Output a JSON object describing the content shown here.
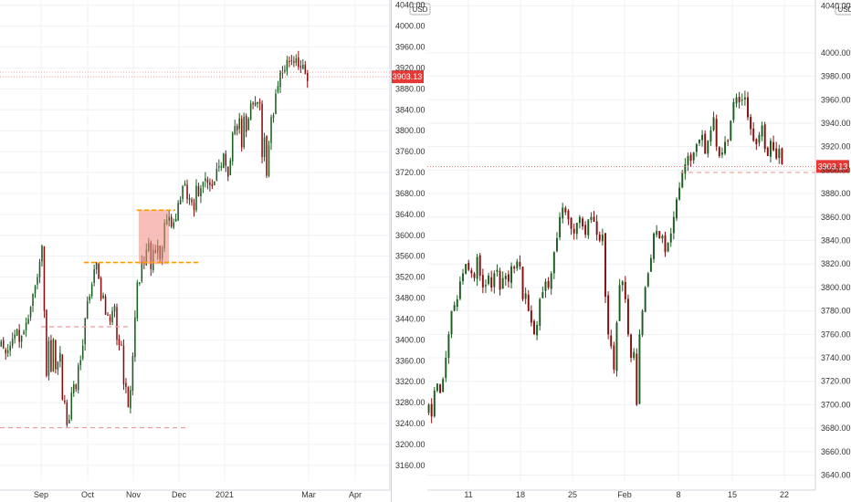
{
  "colors": {
    "up": "#1b5e20",
    "down": "#880e0e",
    "last_price": "#e53935",
    "dashed_red": "#ef9a9a",
    "dashed_orange": "#ff9800",
    "highlight": "#f28b82",
    "grid": "#eef1f5",
    "divider": "#d1d4dc",
    "axis_text": "#333333"
  },
  "chart_data": [
    {
      "type": "candlestick",
      "title": "",
      "currency": "USD",
      "last_price": "3903.13",
      "ylim": [
        3130,
        4050
      ],
      "y_ticks": [
        "3160.00",
        "3200.00",
        "3240.00",
        "3280.00",
        "3320.00",
        "3360.00",
        "3400.00",
        "3440.00",
        "3480.00",
        "3520.00",
        "3560.00",
        "3600.00",
        "3640.00",
        "3680.00",
        "3720.00",
        "3760.00",
        "3800.00",
        "3840.00",
        "3880.00",
        "3920.00",
        "3960.00",
        "4000.00",
        "4040.00"
      ],
      "x_ticks": [
        "Sep",
        "Oct",
        "Nov",
        "Dec",
        "2021",
        "Mar",
        "Apr"
      ],
      "start_date": "2020-08-21",
      "close_series": [
        3397,
        3384,
        3374,
        3380,
        3389,
        3402,
        3410,
        3420,
        3396,
        3408,
        3416,
        3433,
        3440,
        3463,
        3488,
        3503,
        3520,
        3549,
        3580,
        3455,
        3331,
        3398,
        3340,
        3401,
        3344,
        3358,
        3375,
        3286,
        3281,
        3237,
        3247,
        3299,
        3315,
        3306,
        3351,
        3361,
        3389,
        3441,
        3474,
        3483,
        3506,
        3535,
        3548,
        3517,
        3478,
        3485,
        3448,
        3446,
        3436,
        3455,
        3465,
        3400,
        3390,
        3390,
        3315,
        3310,
        3271,
        3304,
        3369,
        3443,
        3510,
        3510,
        3550,
        3545,
        3573,
        3585,
        3535,
        3572,
        3567,
        3581,
        3555,
        3577,
        3624,
        3630,
        3635,
        3617,
        3625,
        3631,
        3662,
        3668,
        3695,
        3699,
        3669,
        3671,
        3663,
        3648,
        3695,
        3675,
        3690,
        3702,
        3709,
        3701,
        3696,
        3694,
        3703,
        3727,
        3732,
        3732,
        3756,
        3733,
        3712,
        3744,
        3796,
        3809,
        3801,
        3824,
        3768,
        3827,
        3798,
        3823,
        3852,
        3851,
        3854,
        3855,
        3852,
        3750,
        3787,
        3714,
        3773,
        3826,
        3830,
        3871,
        3886,
        3915,
        3911,
        3916,
        3935,
        3932,
        3934,
        3930,
        3938,
        3922,
        3921,
        3926,
        3909,
        3895
      ]
    },
    {
      "type": "candlestick",
      "title": "",
      "currency": "USD",
      "last_price": "3903.13",
      "ylim": [
        3635,
        4045
      ],
      "y_ticks": [
        "3640.00",
        "3660.00",
        "3680.00",
        "3700.00",
        "3720.00",
        "3740.00",
        "3760.00",
        "3780.00",
        "3800.00",
        "3820.00",
        "3840.00",
        "3860.00",
        "3880.00",
        "3900.00",
        "3920.00",
        "3940.00",
        "3960.00",
        "3980.00",
        "4000.00",
        "4040.00"
      ],
      "x_ticks": [
        "11",
        "18",
        "25",
        "Feb",
        "8",
        "15",
        "22"
      ],
      "close_series": [
        3700,
        3690,
        3712,
        3718,
        3710,
        3722,
        3740,
        3760,
        3780,
        3785,
        3790,
        3805,
        3812,
        3820,
        3815,
        3812,
        3808,
        3826,
        3810,
        3800,
        3802,
        3810,
        3800,
        3812,
        3815,
        3798,
        3808,
        3810,
        3805,
        3818,
        3816,
        3822,
        3818,
        3790,
        3795,
        3780,
        3770,
        3760,
        3768,
        3790,
        3796,
        3805,
        3800,
        3812,
        3830,
        3842,
        3860,
        3868,
        3864,
        3858,
        3850,
        3846,
        3855,
        3860,
        3852,
        3845,
        3858,
        3860,
        3856,
        3845,
        3840,
        3845,
        3792,
        3760,
        3750,
        3730,
        3770,
        3802,
        3805,
        3790,
        3760,
        3740,
        3745,
        3700,
        3760,
        3780,
        3800,
        3812,
        3825,
        3846,
        3848,
        3842,
        3844,
        3830,
        3838,
        3846,
        3860,
        3875,
        3885,
        3898,
        3905,
        3912,
        3908,
        3915,
        3922,
        3926,
        3930,
        3914,
        3925,
        3934,
        3945,
        3920,
        3912,
        3915,
        3924,
        3925,
        3942,
        3958,
        3962,
        3958,
        3960,
        3962,
        3945,
        3935,
        3925,
        3922,
        3930,
        3938,
        3918,
        3912,
        3925,
        3917,
        3910,
        3918,
        3905
      ]
    }
  ]
}
